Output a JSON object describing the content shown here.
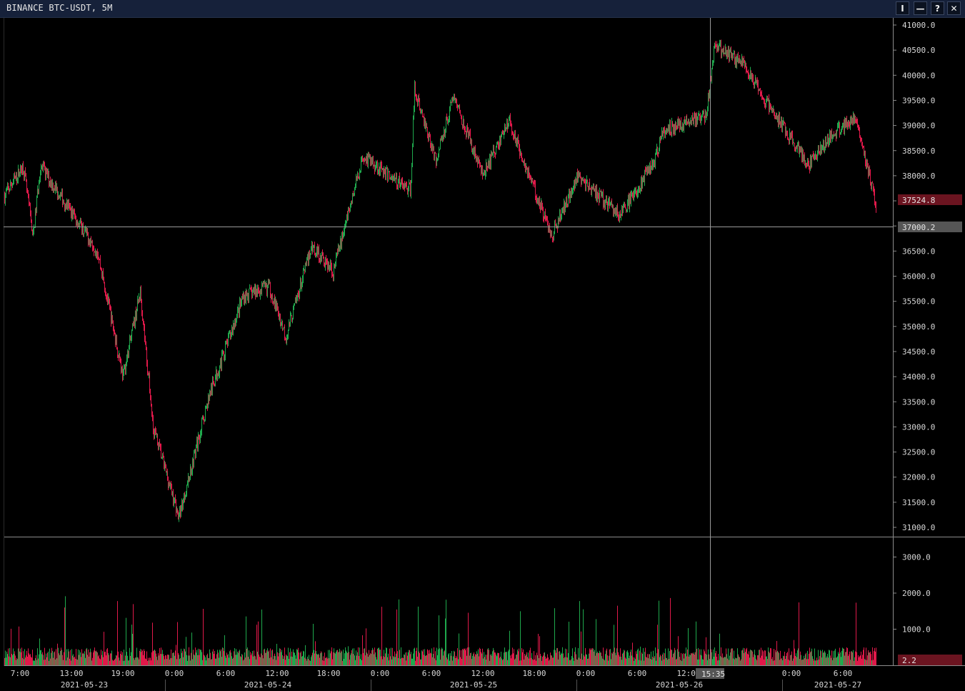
{
  "window": {
    "title": "BINANCE BTC-USDT, 5M",
    "buttons": [
      {
        "name": "indicator-button",
        "label": "I"
      },
      {
        "name": "minimize-button",
        "label": "—"
      },
      {
        "name": "help-button",
        "label": "?"
      },
      {
        "name": "close-button",
        "label": "✕"
      }
    ]
  },
  "colors": {
    "up": "#1fa94d",
    "down": "#e0194a",
    "grid": "#8c8c8c",
    "price_badge": "#6b1420",
    "cursor_badge": "#555555"
  },
  "price_axis": {
    "ticks": [
      "41000.0",
      "40500.0",
      "40000.0",
      "39500.0",
      "39000.0",
      "38500.0",
      "38000.0",
      "37500.0",
      "37000.0",
      "36500.0",
      "36000.0",
      "35500.0",
      "35000.0",
      "34500.0",
      "34000.0",
      "33500.0",
      "33000.0",
      "32500.0",
      "32000.0",
      "31500.0",
      "31000.0"
    ],
    "last_price": "37524.8",
    "cursor_price": "37000.2"
  },
  "volume_axis": {
    "ticks": [
      "3000.0",
      "2000.0",
      "1000.0"
    ],
    "last_volume": "2.2"
  },
  "time_axis": {
    "times": [
      "7:00",
      "13:00",
      "19:00",
      "0:00",
      "6:00",
      "12:00",
      "18:00",
      "0:00",
      "6:00",
      "12:00",
      "18:00",
      "0:00",
      "6:00",
      "12:00",
      "0:00",
      "6:00"
    ],
    "cursor_time": "15:35",
    "dates": [
      "2021-05-23",
      "2021-05-24",
      "2021-05-25",
      "2021-05-26",
      "2021-05-27"
    ]
  },
  "chart_data": {
    "type": "candlestick",
    "symbol": "BTC-USDT",
    "exchange": "BINANCE",
    "interval": "5M",
    "price_range": [
      31000,
      41000
    ],
    "volume_range": [
      0,
      3000
    ],
    "key_points": [
      {
        "time": "2021-05-23 05:10",
        "price": 37600
      },
      {
        "time": "2021-05-23 07:20",
        "price": 38200
      },
      {
        "time": "2021-05-23 08:30",
        "price": 36800
      },
      {
        "time": "2021-05-23 09:20",
        "price": 38200
      },
      {
        "time": "2021-05-23 16:00",
        "price": 36500
      },
      {
        "time": "2021-05-23 19:00",
        "price": 34000
      },
      {
        "time": "2021-05-23 21:00",
        "price": 35700
      },
      {
        "time": "2021-05-23 22:30",
        "price": 33000
      },
      {
        "time": "2021-05-24 01:30",
        "price": 31200
      },
      {
        "time": "2021-05-24 05:00",
        "price": 33600
      },
      {
        "time": "2021-05-24 09:00",
        "price": 35600
      },
      {
        "time": "2021-05-24 12:00",
        "price": 35800
      },
      {
        "time": "2021-05-24 14:00",
        "price": 34800
      },
      {
        "time": "2021-05-24 17:00",
        "price": 36600
      },
      {
        "time": "2021-05-24 19:30",
        "price": 36100
      },
      {
        "time": "2021-05-24 23:00",
        "price": 38400
      },
      {
        "time": "2021-05-25 04:30",
        "price": 37700
      },
      {
        "time": "2021-05-25 05:00",
        "price": 39700
      },
      {
        "time": "2021-05-25 07:30",
        "price": 38300
      },
      {
        "time": "2021-05-25 09:30",
        "price": 39600
      },
      {
        "time": "2021-05-25 13:00",
        "price": 38000
      },
      {
        "time": "2021-05-25 16:00",
        "price": 39100
      },
      {
        "time": "2021-05-25 21:00",
        "price": 36800
      },
      {
        "time": "2021-05-26 00:00",
        "price": 38000
      },
      {
        "time": "2021-05-26 05:00",
        "price": 37200
      },
      {
        "time": "2021-05-26 09:00",
        "price": 38300
      },
      {
        "time": "2021-05-26 10:00",
        "price": 38900
      },
      {
        "time": "2021-05-26 15:00",
        "price": 39200
      },
      {
        "time": "2021-05-26 16:00",
        "price": 40600
      },
      {
        "time": "2021-05-26 19:30",
        "price": 40200
      },
      {
        "time": "2021-05-26 21:30",
        "price": 39600
      },
      {
        "time": "2021-05-27 03:00",
        "price": 38200
      },
      {
        "time": "2021-05-27 05:00",
        "price": 38700
      },
      {
        "time": "2021-05-27 08:30",
        "price": 39200
      },
      {
        "time": "2021-05-27 10:50",
        "price": 37400
      }
    ]
  }
}
